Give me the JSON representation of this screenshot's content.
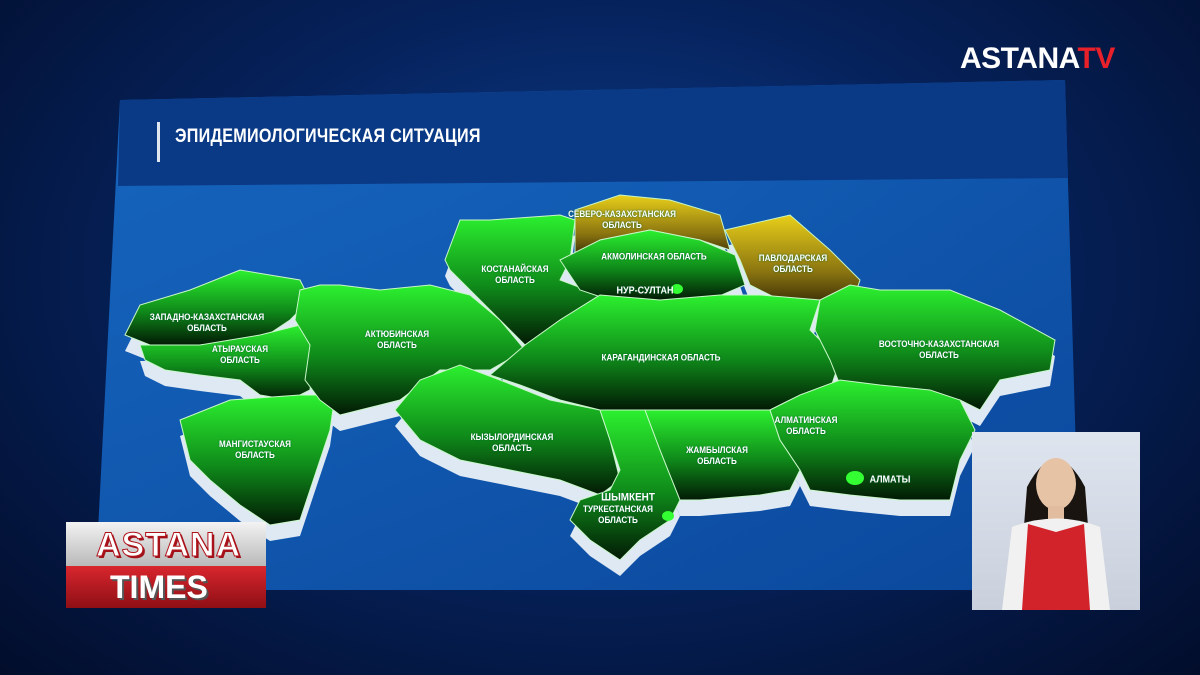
{
  "channel_logo": {
    "text_main": "ASTANA",
    "text_accent": "TV",
    "accent_color": "#e8202a"
  },
  "title": "ЭПИДЕМИОЛОГИЧЕСКАЯ СИТУАЦИЯ",
  "map": {
    "legend_colors": {
      "green": "#22e02a",
      "yellow": "#d4b812"
    },
    "regions": [
      {
        "name_line1": "ЗАПАДНО-КАЗАХСТАНСКАЯ",
        "name_line2": "ОБЛАСТЬ",
        "status": "green"
      },
      {
        "name_line1": "АТЫРАУСКАЯ",
        "name_line2": "ОБЛАСТЬ",
        "status": "green"
      },
      {
        "name_line1": "МАНГИСТАУСКАЯ",
        "name_line2": "ОБЛАСТЬ",
        "status": "green"
      },
      {
        "name_line1": "АКТЮБИНСКАЯ",
        "name_line2": "ОБЛАСТЬ",
        "status": "green"
      },
      {
        "name_line1": "КОСТАНАЙСКАЯ",
        "name_line2": "ОБЛАСТЬ",
        "status": "green"
      },
      {
        "name_line1": "СЕВЕРО-КАЗАХСТАНСКАЯ",
        "name_line2": "ОБЛАСТЬ",
        "status": "yellow"
      },
      {
        "name_line1": "АКМОЛИНСКАЯ ОБЛАСТЬ",
        "name_line2": "",
        "status": "green"
      },
      {
        "name_line1": "ПАВЛОДАРСКАЯ",
        "name_line2": "ОБЛАСТЬ",
        "status": "yellow"
      },
      {
        "name_line1": "КАРАГАНДИНСКАЯ ОБЛАСТЬ",
        "name_line2": "",
        "status": "green"
      },
      {
        "name_line1": "ВОСТОЧНО-КАЗАХСТАНСКАЯ",
        "name_line2": "ОБЛАСТЬ",
        "status": "green"
      },
      {
        "name_line1": "КЫЗЫЛОРДИНСКАЯ",
        "name_line2": "ОБЛАСТЬ",
        "status": "green"
      },
      {
        "name_line1": "ТУРКЕСТАНСКАЯ",
        "name_line2": "ОБЛАСТЬ",
        "status": "green"
      },
      {
        "name_line1": "ЖАМБЫЛСКАЯ",
        "name_line2": "ОБЛАСТЬ",
        "status": "green"
      },
      {
        "name_line1": "АЛМАТИНСКАЯ",
        "name_line2": "ОБЛАСТЬ",
        "status": "green"
      }
    ],
    "cities": [
      {
        "name": "НУР-СУЛТАН",
        "status": "green"
      },
      {
        "name": "АЛМАТЫ",
        "status": "green"
      },
      {
        "name": "ШЫМКЕНТ",
        "status": "green"
      }
    ]
  },
  "lower_logo": {
    "line1": "ASTANA",
    "line2": "TIMES"
  }
}
